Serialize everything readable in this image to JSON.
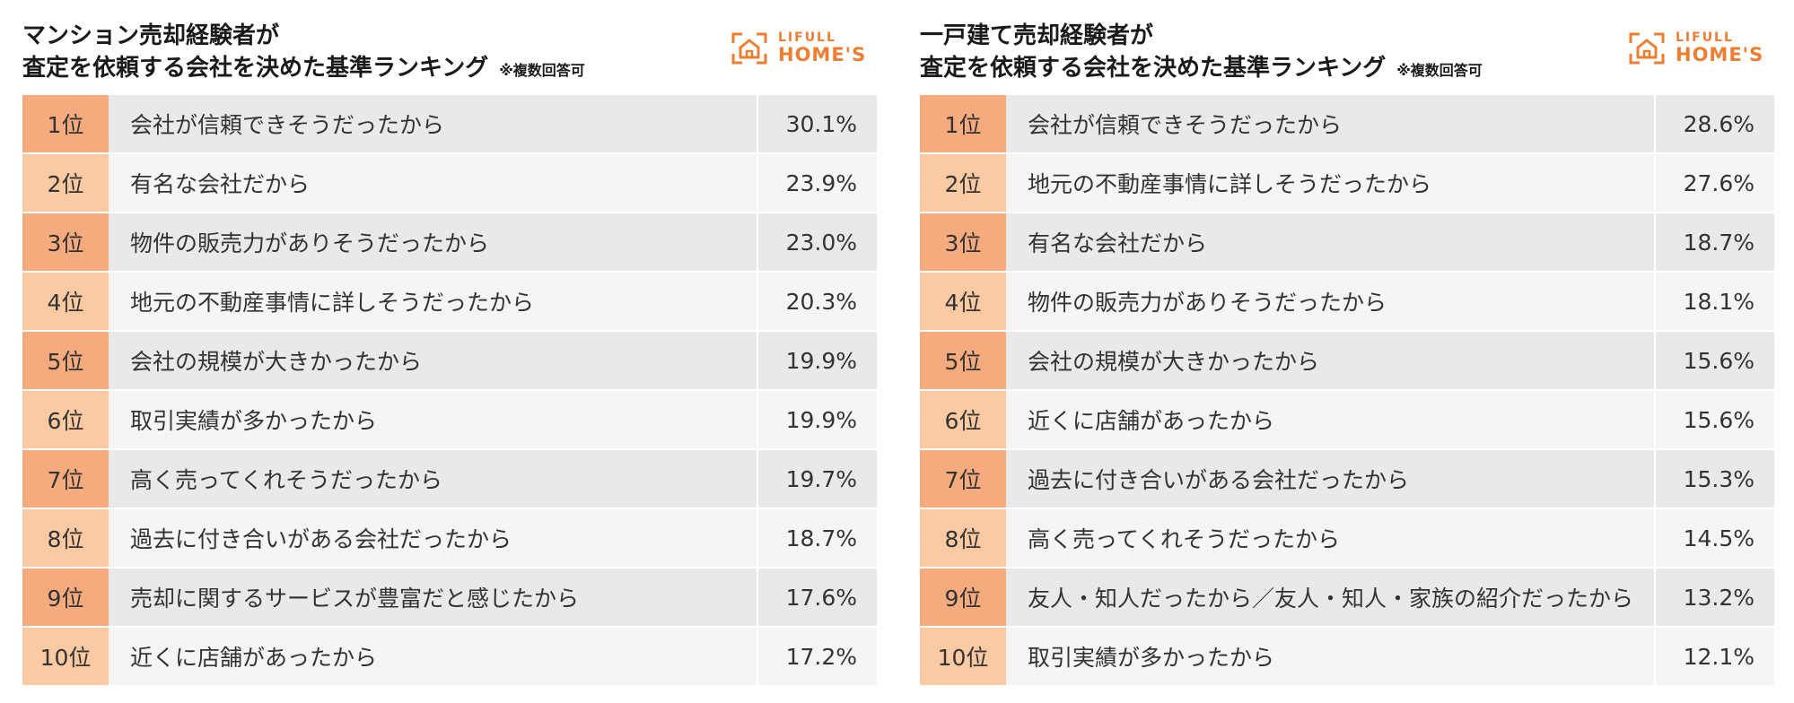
{
  "colors": {
    "rank_dark": "#f5ab7d",
    "rank_light": "#fbc9a2",
    "row_dark": "#e9e9e9",
    "row_light": "#f5f5f5",
    "brand": "#ed7d31"
  },
  "logo": {
    "top": "LIFULL",
    "bottom": "HOME'S",
    "icon": "house-icon"
  },
  "chart_data": [
    {
      "type": "table",
      "title": [
        "マンション売却経験者が",
        "査定を依頼する会社を決めた基準ランキング"
      ],
      "note": "※複数回答可",
      "columns": [
        "rank",
        "reason",
        "percent"
      ],
      "rows": [
        {
          "rank": "1位",
          "reason": "会社が信頼できそうだったから",
          "value": 30.1,
          "label": "30.1%"
        },
        {
          "rank": "2位",
          "reason": "有名な会社だから",
          "value": 23.9,
          "label": "23.9%"
        },
        {
          "rank": "3位",
          "reason": "物件の販売力がありそうだったから",
          "value": 23.0,
          "label": "23.0%"
        },
        {
          "rank": "4位",
          "reason": "地元の不動産事情に詳しそうだったから",
          "value": 20.3,
          "label": "20.3%"
        },
        {
          "rank": "5位",
          "reason": "会社の規模が大きかったから",
          "value": 19.9,
          "label": "19.9%"
        },
        {
          "rank": "6位",
          "reason": "取引実績が多かったから",
          "value": 19.9,
          "label": "19.9%"
        },
        {
          "rank": "7位",
          "reason": "高く売ってくれそうだったから",
          "value": 19.7,
          "label": "19.7%"
        },
        {
          "rank": "8位",
          "reason": "過去に付き合いがある会社だったから",
          "value": 18.7,
          "label": "18.7%"
        },
        {
          "rank": "9位",
          "reason": "売却に関するサービスが豊富だと感じたから",
          "value": 17.6,
          "label": "17.6%"
        },
        {
          "rank": "10位",
          "reason": "近くに店舗があったから",
          "value": 17.2,
          "label": "17.2%"
        }
      ]
    },
    {
      "type": "table",
      "title": [
        "一戸建て売却経験者が",
        "査定を依頼する会社を決めた基準ランキング"
      ],
      "note": "※複数回答可",
      "columns": [
        "rank",
        "reason",
        "percent"
      ],
      "rows": [
        {
          "rank": "1位",
          "reason": "会社が信頼できそうだったから",
          "value": 28.6,
          "label": "28.6%"
        },
        {
          "rank": "2位",
          "reason": "地元の不動産事情に詳しそうだったから",
          "value": 27.6,
          "label": "27.6%"
        },
        {
          "rank": "3位",
          "reason": "有名な会社だから",
          "value": 18.7,
          "label": "18.7%"
        },
        {
          "rank": "4位",
          "reason": "物件の販売力がありそうだったから",
          "value": 18.1,
          "label": "18.1%"
        },
        {
          "rank": "5位",
          "reason": "会社の規模が大きかったから",
          "value": 15.6,
          "label": "15.6%"
        },
        {
          "rank": "6位",
          "reason": "近くに店舗があったから",
          "value": 15.6,
          "label": "15.6%"
        },
        {
          "rank": "7位",
          "reason": "過去に付き合いがある会社だったから",
          "value": 15.3,
          "label": "15.3%"
        },
        {
          "rank": "8位",
          "reason": "高く売ってくれそうだったから",
          "value": 14.5,
          "label": "14.5%"
        },
        {
          "rank": "9位",
          "reason": "友人・知人だったから／友人・知人・家族の紹介だったから",
          "value": 13.2,
          "label": "13.2%"
        },
        {
          "rank": "10位",
          "reason": "取引実績が多かったから",
          "value": 12.1,
          "label": "12.1%"
        }
      ]
    }
  ]
}
